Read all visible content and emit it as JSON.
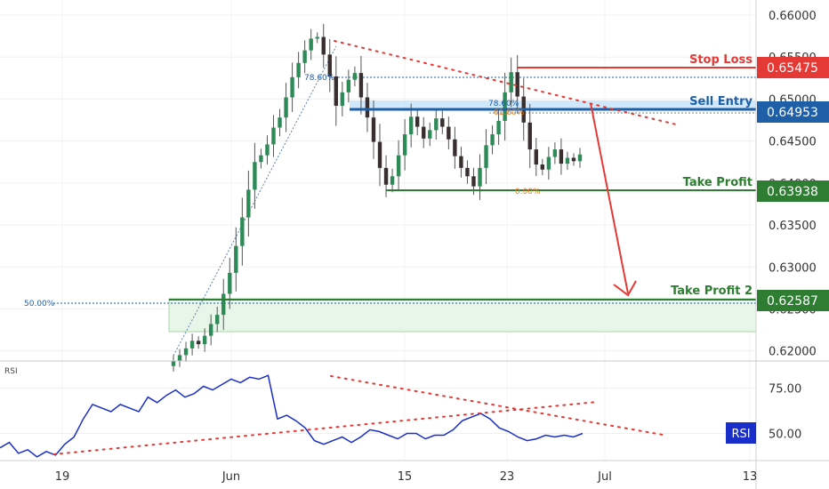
{
  "chart_data": {
    "type": "candlestick",
    "instrument_timeframe": "daily",
    "price_axis": {
      "ticks": [
        "0.66000",
        "0.65500",
        "0.65000",
        "0.64500",
        "0.64000",
        "0.63500",
        "0.63000",
        "0.62500",
        "0.62000"
      ],
      "tick_values": [
        0.66,
        0.655,
        0.65,
        0.645,
        0.64,
        0.635,
        0.63,
        0.625,
        0.62
      ],
      "ylim": [
        0.6188,
        0.6618
      ]
    },
    "time_axis": {
      "labels": [
        "19",
        "Jun",
        "15",
        "23",
        "Jul",
        "13"
      ]
    },
    "levels": [
      {
        "name": "Stop Loss",
        "price_label": "0.65475",
        "value": 0.65475,
        "color": "#e53935"
      },
      {
        "name": "Sell Entry",
        "price_label": "0.64953",
        "value": 0.64953,
        "color": "#1e5fa8"
      },
      {
        "name": "Take Profit",
        "price_label": "0.63938",
        "value": 0.63938,
        "color": "#2e7d32"
      },
      {
        "name": "Take Profit 2",
        "price_label": "0.62587",
        "value": 0.62587,
        "color": "#2e7d32"
      }
    ],
    "fib_labels": {
      "main_786": "78.60%",
      "retrace_786": "78.60%",
      "retrace_618": "61.80%",
      "retrace_0": "0.00%",
      "left_50": "50.00%"
    },
    "ohlc_closes": [
      0.6188,
      0.6195,
      0.6203,
      0.6212,
      0.6208,
      0.6218,
      0.6232,
      0.6243,
      0.6268,
      0.6293,
      0.6325,
      0.6359,
      0.6392,
      0.6425,
      0.6433,
      0.6446,
      0.6466,
      0.6478,
      0.6502,
      0.6526,
      0.6543,
      0.6558,
      0.6572,
      0.6574,
      0.6553,
      0.6527,
      0.6492,
      0.6508,
      0.6523,
      0.6531,
      0.6502,
      0.6478,
      0.6449,
      0.6418,
      0.6398,
      0.6408,
      0.6433,
      0.6458,
      0.6479,
      0.6467,
      0.6453,
      0.6463,
      0.6477,
      0.6467,
      0.6452,
      0.6432,
      0.6418,
      0.6408,
      0.6396,
      0.6418,
      0.6445,
      0.6458,
      0.6474,
      0.6508,
      0.6532,
      0.6503,
      0.6472,
      0.644,
      0.6422,
      0.6416,
      0.6431,
      0.644,
      0.6423,
      0.643,
      0.6426,
      0.6434
    ],
    "rsi": {
      "label": "RSI",
      "badge": "RSI",
      "ticks": [
        "75.00",
        "50.00"
      ],
      "tick_values": [
        75,
        50
      ],
      "ylim": [
        35,
        90
      ],
      "values": [
        42,
        45,
        39,
        41,
        37,
        40,
        38,
        44,
        48,
        58,
        66,
        64,
        62,
        66,
        64,
        62,
        70,
        67,
        71,
        74,
        70,
        72,
        76,
        74,
        77,
        80,
        78,
        81,
        80,
        82,
        58,
        60,
        57,
        53,
        46,
        44,
        46,
        48,
        45,
        48,
        52,
        51,
        49,
        47,
        50,
        50,
        47,
        49,
        49,
        52,
        57,
        59,
        61,
        58,
        53,
        51,
        48,
        46,
        47,
        49,
        48,
        49,
        48,
        50
      ]
    }
  }
}
